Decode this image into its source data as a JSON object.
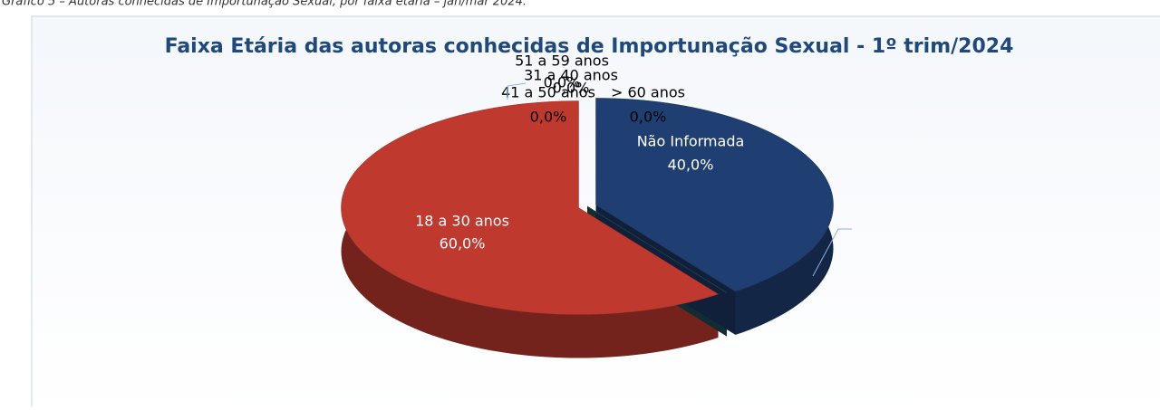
{
  "caption": "Gráfico 5 – Autoras conhecidas de Importunação Sexual, por faixa etária – jan/mar 2024.",
  "chart_data": {
    "type": "pie3d",
    "title": "Faixa Etária das autoras conhecidas de Importunação Sexual - 1º trim/2024",
    "categories": [
      "18 a 30 anos",
      "31 a 40 anos",
      "41 a 50 anos",
      "51 a 59 anos",
      "> 60 anos",
      "Não Informada"
    ],
    "values": [
      60,
      0,
      0,
      0,
      0,
      40
    ],
    "value_labels": [
      "60,0%",
      "0,0%",
      "0,0%",
      "0,0%",
      "0,0%",
      "40,0%"
    ],
    "colors": [
      "#c0392f",
      "#8b5a1e",
      "#6b3d10",
      "#4f6228",
      "#215968",
      "#1f3f73"
    ]
  }
}
